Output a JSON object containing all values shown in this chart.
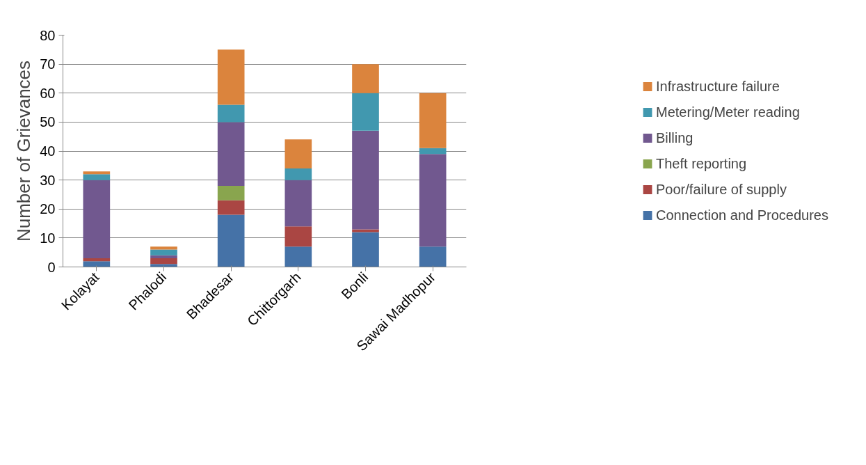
{
  "chart_data": {
    "type": "bar",
    "stacked": true,
    "ylabel": "Number of Grievances",
    "categories": [
      "Kolayat",
      "Phalodi",
      "Bhadesar",
      "Chittorgarh",
      "Bonli",
      "Sawai Madhopur"
    ],
    "series": [
      {
        "name": "Connection and Procedures",
        "color": "#4572a7",
        "values": [
          2,
          1,
          18,
          7,
          12,
          7
        ]
      },
      {
        "name": "Poor/failure of supply",
        "color": "#aa4643",
        "values": [
          1,
          2,
          5,
          7,
          1,
          0
        ]
      },
      {
        "name": "Theft reporting",
        "color": "#89a54e",
        "values": [
          0,
          0,
          5,
          0,
          0,
          0
        ]
      },
      {
        "name": "Billing",
        "color": "#71588f",
        "values": [
          27,
          1,
          22,
          16,
          34,
          32
        ]
      },
      {
        "name": "Metering/Meter reading",
        "color": "#4198af",
        "values": [
          2,
          2,
          6,
          4,
          13,
          2
        ]
      },
      {
        "name": "Infrastructure failure",
        "color": "#db843d",
        "values": [
          1,
          1,
          19,
          10,
          10,
          19
        ]
      }
    ],
    "ylim": [
      0,
      80
    ],
    "yticks": [
      0,
      10,
      20,
      30,
      40,
      50,
      60,
      70,
      80
    ],
    "grid": "y",
    "legend": "right"
  }
}
